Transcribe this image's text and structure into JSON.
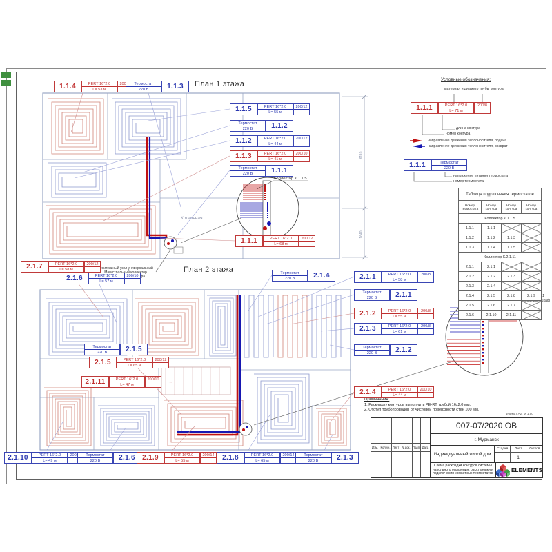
{
  "colors": {
    "supply_red": "#c11212",
    "return_blue": "#1717b2",
    "label_red": "#c03030",
    "label_blue": "#2b38b0",
    "coil_red": "#cf8276",
    "coil_blue": "#8a96cd",
    "wall": "#9aa6c4",
    "dim": "#8892aa",
    "green_mark": "#3f8f3f"
  },
  "plan1": {
    "title": "План 1 этажа",
    "room_label": "Котельная",
    "collector_label": "Коллектор К.1.1.5",
    "dims": [
      "6110",
      "1640"
    ],
    "labels": [
      {
        "kind": "circuit",
        "num": "1.1.4",
        "color": "red",
        "pipe": "PERT 16*2.0",
        "len": "L= 53 м",
        "spec": "200/12"
      },
      {
        "kind": "tstat",
        "num": "1.1.3",
        "color": "blue",
        "name": "Термостат",
        "volt": "220 В"
      },
      {
        "kind": "circuit",
        "num": "1.1.5",
        "color": "blue",
        "pipe": "PERT 16*2.0",
        "len": "L= 55 м",
        "spec": "200/12"
      },
      {
        "kind": "tstat",
        "num": "1.1.2",
        "color": "blue",
        "name": "Термостат",
        "volt": "220 В"
      },
      {
        "kind": "circuit",
        "num": "1.1.2",
        "color": "blue",
        "pipe": "PERT 16*2.0",
        "len": "L= 44 м",
        "spec": "200/12"
      },
      {
        "kind": "circuit",
        "num": "1.1.3",
        "color": "red",
        "pipe": "PERT 16*2.0",
        "len": "L= 41 м",
        "spec": "200/10"
      },
      {
        "kind": "tstat",
        "num": "1.1.1",
        "color": "blue",
        "name": "Термостат",
        "volt": "220 В"
      },
      {
        "kind": "circuit",
        "num": "1.1.1",
        "color": "red",
        "pipe": "PERT 16*2.0",
        "len": "L= 68 м",
        "spec": "200/12"
      }
    ]
  },
  "plan2": {
    "title": "План 2 этажа",
    "collector_label_line1": "Коллектор К.2.1.11",
    "collector_label_line2": "встраиваемый шкаф",
    "mixer_note": [
      "Смесительный узел универсальный +",
      "Магистральный коллектор",
      "на 2 выхода, без шкафа"
    ],
    "labels": [
      {
        "kind": "circuit",
        "num": "2.1.7",
        "color": "red",
        "pipe": "PERT 16*2.0",
        "len": "L= 58 м",
        "spec": "200/12"
      },
      {
        "kind": "circuit",
        "num": "2.1.6",
        "color": "blue",
        "pipe": "PERT 16*2.0",
        "len": "L= 57 м",
        "spec": "200/10"
      },
      {
        "kind": "tstat",
        "num": "2.1.4",
        "color": "blue",
        "name": "Термостат",
        "volt": "220 В"
      },
      {
        "kind": "circuit",
        "num": "2.1.1",
        "color": "blue",
        "pipe": "PERT 16*2.0",
        "len": "L= 58 м",
        "spec": "200/8"
      },
      {
        "kind": "tstat",
        "num": "2.1.1",
        "color": "blue",
        "name": "Термостат",
        "volt": "220 В"
      },
      {
        "kind": "circuit",
        "num": "2.1.2",
        "color": "red",
        "pipe": "PERT 16*2.0",
        "len": "L= 55 м",
        "spec": "200/8"
      },
      {
        "kind": "circuit",
        "num": "2.1.3",
        "color": "blue",
        "pipe": "PERT 16*2.0",
        "len": "L= 61 м",
        "spec": "200/8"
      },
      {
        "kind": "tstat",
        "num": "2.1.2",
        "color": "blue",
        "name": "Термостат",
        "volt": "220 В"
      },
      {
        "kind": "tstat",
        "num": "2.1.5",
        "color": "blue",
        "name": "Термостат",
        "volt": "220 В"
      },
      {
        "kind": "circuit",
        "num": "2.1.5",
        "color": "red",
        "pipe": "PERT 16*2.0",
        "len": "L= 65 м",
        "spec": "200/12"
      },
      {
        "kind": "circuit",
        "num": "2.1.11",
        "color": "red",
        "pipe": "PERT 16*2.0",
        "len": "L= 47 м",
        "spec": "200/10"
      },
      {
        "kind": "circuit",
        "num": "2.1.4",
        "color": "red",
        "pipe": "PERT 16*2.0",
        "len": "L= 44 м",
        "spec": "200/10"
      },
      {
        "kind": "circuit",
        "num": "2.1.10",
        "color": "blue",
        "pipe": "PERT 16*2.0",
        "len": "L= 49 м",
        "spec": "200/10"
      },
      {
        "kind": "tstat",
        "num": "2.1.6",
        "color": "blue",
        "name": "Термостат",
        "volt": "220 В"
      },
      {
        "kind": "circuit",
        "num": "2.1.9",
        "color": "red",
        "pipe": "PERT 16*2.0",
        "len": "L= 55 м",
        "spec": "200/14"
      },
      {
        "kind": "circuit",
        "num": "2.1.8",
        "color": "blue",
        "pipe": "PERT 16*2.0",
        "len": "L= 65 м",
        "spec": "200/14"
      },
      {
        "kind": "tstat",
        "num": "2.1.3",
        "color": "blue",
        "name": "Термостат",
        "volt": "220 В"
      }
    ]
  },
  "legend": {
    "title": "Условные обозначения:",
    "sample_circuit": {
      "num": "1.1.1",
      "pipe": "PERT 16*2.0",
      "len": "L= 71 м",
      "spec": "200/8"
    },
    "cap_material": "материал и диаметр трубы контура",
    "cap_length": "длина контура",
    "cap_number": "номер контура",
    "arrow_supply": "направление движения теплоносителя, подача",
    "arrow_return": "направление движения теплоносителя, возврат",
    "sample_thermostat": {
      "num": "1.1.1",
      "name": "Термостат",
      "volt": "220 В"
    },
    "cap_volt": "напряжение питания термостата",
    "cap_tnum": "номер термостата"
  },
  "table": {
    "title": "Таблица подключения  термостатов",
    "headers": [
      "Номер термостата",
      "Номер контура",
      "Номер контура",
      "Номер контура"
    ],
    "sections": [
      {
        "name": "Коллектор К.1.1.5",
        "rows": [
          [
            "1.1.1",
            "1.1.1",
            "",
            ""
          ],
          [
            "1.1.2",
            "1.1.2",
            "1.1.3",
            ""
          ],
          [
            "1.1.3",
            "1.1.4",
            "1.1.5",
            ""
          ]
        ]
      },
      {
        "name": "Коллектор К.2.1.11",
        "rows": [
          [
            "2.1.1",
            "2.1.1",
            "",
            ""
          ],
          [
            "2.1.2",
            "2.1.2",
            "2.1.3",
            ""
          ],
          [
            "2.1.3",
            "2.1.4",
            "",
            ""
          ],
          [
            "2.1.4",
            "2.1.5",
            "2.1.8",
            "2.1.9"
          ],
          [
            "2.1.5",
            "2.1.6",
            "2.1.7",
            ""
          ],
          [
            "2.1.6",
            "2.1.10",
            "2.1.11",
            ""
          ]
        ]
      }
    ]
  },
  "notes": {
    "title": "Примечания:",
    "items": [
      "1. Раскладку контуров выполнить PE-RT трубой  16х2.0 мм.",
      "2. Отступ трубопроводов от чистовой поверхности стен 100 мм."
    ],
    "format": "Формат А2, М 1:50"
  },
  "titleblock": {
    "doc": "007-07/2020 ОВ",
    "city": "г. Мурманск",
    "object": "Индивидуальный жилой дом",
    "stage_h": "Стадия",
    "sheet_h": "Лист",
    "sheets_h": "Листов",
    "sheet_no": "1",
    "desc": "Схема раскладки контуров системы напольного отопления, расстановки и подключения комнатных термостатов",
    "brand": "ELEMENTS",
    "rev_headers": [
      "Изм.",
      "Кол.уч.",
      "Лист",
      "N док.",
      "Подп.",
      "Дата"
    ]
  }
}
